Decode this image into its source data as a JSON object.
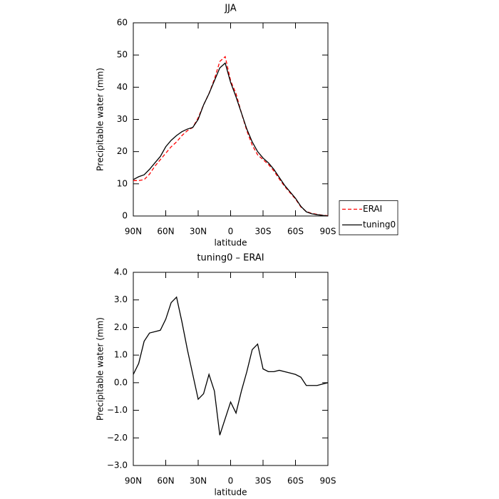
{
  "chart_data": [
    {
      "type": "line",
      "title": "JJA",
      "x_label": "latitude",
      "y_label": "Precipitable water (mm)",
      "x": [
        90,
        85,
        80,
        75,
        70,
        65,
        60,
        55,
        50,
        45,
        40,
        35,
        30,
        25,
        20,
        15,
        10,
        5,
        0,
        -5,
        -10,
        -15,
        -20,
        -25,
        -30,
        -35,
        -40,
        -45,
        -50,
        -55,
        -60,
        -65,
        -70,
        -75,
        -80,
        -85,
        -90
      ],
      "series": [
        {
          "name": "ERAI",
          "color": "#ff0000",
          "dash": true,
          "values": [
            11,
            11,
            11.3,
            13,
            15.5,
            17.5,
            19.5,
            21.5,
            23,
            25,
            26.5,
            27.5,
            30.5,
            34.5,
            38,
            42.5,
            48,
            49.5,
            42,
            38,
            32,
            26.5,
            22,
            19,
            17.5,
            16,
            14,
            11.5,
            9.2,
            7.2,
            5.3,
            2.8,
            1.4,
            0.8,
            0.5,
            0.25,
            0.1
          ]
        },
        {
          "name": "tuning0",
          "color": "#000000",
          "dash": false,
          "values": [
            11.3,
            12.2,
            12.8,
            14.5,
            16.5,
            18.5,
            21.5,
            23.5,
            25,
            26.2,
            27,
            27.5,
            30,
            34.5,
            38,
            42,
            46,
            47.5,
            41.5,
            37,
            32,
            27,
            23,
            20,
            18,
            16.5,
            14.5,
            12,
            9.5,
            7.5,
            5.5,
            3,
            1.3,
            0.7,
            0.4,
            0.2,
            0
          ]
        }
      ],
      "xlim": [
        90,
        -90
      ],
      "xticks": [
        {
          "value": 90,
          "label": "90N"
        },
        {
          "value": 60,
          "label": "60N"
        },
        {
          "value": 30,
          "label": "30N"
        },
        0,
        {
          "value": -30,
          "label": "30S"
        },
        {
          "value": -60,
          "label": "60S"
        },
        {
          "value": -90,
          "label": "90S"
        }
      ],
      "ylim": [
        0,
        60
      ],
      "yticks": [
        0,
        10,
        20,
        30,
        40,
        50,
        60
      ],
      "legend": "right"
    },
    {
      "type": "line",
      "title": "tuning0 – ERAI",
      "x_label": "latitude",
      "y_label": "Precipitable water (mm)",
      "x": [
        90,
        85,
        80,
        75,
        70,
        65,
        60,
        55,
        50,
        45,
        40,
        35,
        30,
        25,
        20,
        15,
        10,
        5,
        0,
        -5,
        -10,
        -15,
        -20,
        -25,
        -30,
        -35,
        -40,
        -45,
        -50,
        -55,
        -60,
        -65,
        -70,
        -75,
        -80,
        -85,
        -90
      ],
      "series": [
        {
          "color": "#000000",
          "dash": false,
          "values": [
            0.3,
            0.7,
            1.5,
            1.8,
            1.85,
            1.9,
            2.3,
            2.9,
            3.1,
            2.2,
            1.2,
            0.3,
            -0.6,
            -0.4,
            0.3,
            -0.3,
            -1.9,
            -1.3,
            -0.7,
            -1.1,
            -0.3,
            0.4,
            1.2,
            1.4,
            0.5,
            0.4,
            0.4,
            0.45,
            0.4,
            0.35,
            0.3,
            0.2,
            -0.1,
            -0.1,
            -0.1,
            -0.05,
            0
          ]
        }
      ],
      "xlim": [
        90,
        -90
      ],
      "xticks": [
        {
          "value": 90,
          "label": "90N"
        },
        {
          "value": 60,
          "label": "60N"
        },
        {
          "value": 30,
          "label": "30N"
        },
        0,
        {
          "value": -30,
          "label": "30S"
        },
        {
          "value": -60,
          "label": "60S"
        },
        {
          "value": -90,
          "label": "90S"
        }
      ],
      "ylim": [
        -3,
        4
      ],
      "yticks": [
        {
          "value": -3,
          "label": "−3.0"
        },
        {
          "value": -2,
          "label": "−2.0"
        },
        {
          "value": -1,
          "label": "−1.0"
        },
        {
          "value": 0,
          "label": "0.0"
        },
        {
          "value": 1,
          "label": "1.0"
        },
        {
          "value": 2,
          "label": "2.0"
        },
        {
          "value": 3,
          "label": "3.0"
        },
        {
          "value": 4,
          "label": "4.0"
        }
      ]
    }
  ]
}
